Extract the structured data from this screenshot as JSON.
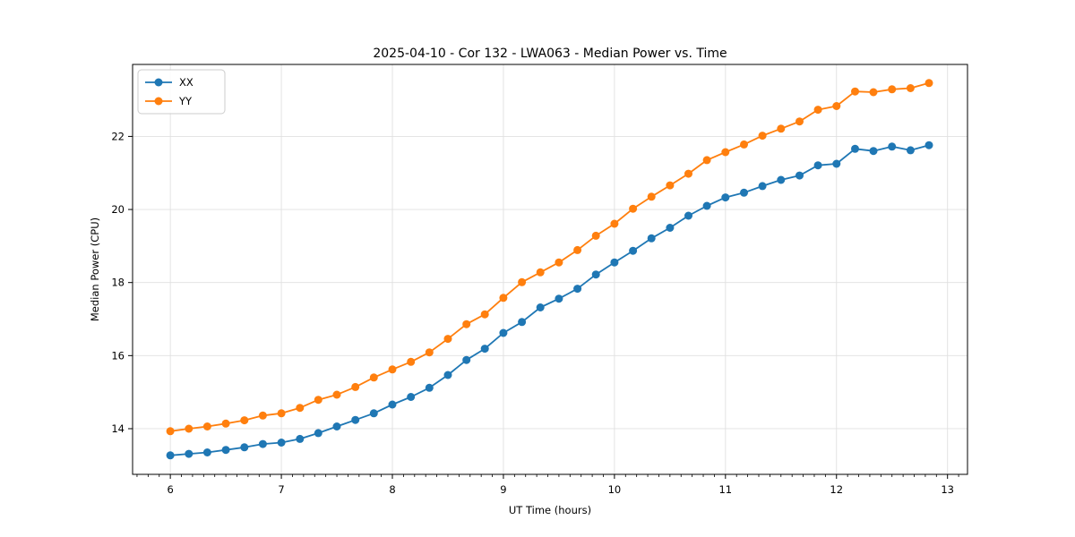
{
  "chart_data": {
    "type": "line",
    "title": "2025-04-10 - Cor 132 - LWA063 - Median Power vs. Time",
    "xlabel": "UT Time (hours)",
    "ylabel": "Median Power (CPU)",
    "xlim": [
      5.66,
      13.18
    ],
    "ylim": [
      12.75,
      23.97
    ],
    "xticks": [
      6,
      7,
      8,
      9,
      10,
      11,
      12,
      13
    ],
    "yticks": [
      14,
      16,
      18,
      20,
      22
    ],
    "minor_xtick_step": 0.1,
    "grid": true,
    "grid_color": "#e0e0e0",
    "legend_position": "upper-left",
    "x": [
      6.0,
      6.167,
      6.333,
      6.5,
      6.667,
      6.833,
      7.0,
      7.167,
      7.333,
      7.5,
      7.667,
      7.833,
      8.0,
      8.167,
      8.333,
      8.5,
      8.667,
      8.833,
      9.0,
      9.167,
      9.333,
      9.5,
      9.667,
      9.833,
      10.0,
      10.167,
      10.333,
      10.5,
      10.667,
      10.833,
      11.0,
      11.167,
      11.333,
      11.5,
      11.667,
      11.833,
      12.0,
      12.167,
      12.333,
      12.5,
      12.667,
      12.833
    ],
    "series": [
      {
        "name": "XX",
        "color": "#1f77b4",
        "values": [
          13.27,
          13.31,
          13.35,
          13.42,
          13.49,
          13.58,
          13.62,
          13.72,
          13.88,
          14.06,
          14.24,
          14.42,
          14.66,
          14.87,
          15.12,
          15.47,
          15.88,
          16.19,
          16.62,
          16.92,
          17.32,
          17.56,
          17.83,
          18.22,
          18.55,
          18.87,
          19.21,
          19.5,
          19.83,
          20.1,
          20.33,
          20.46,
          20.64,
          20.81,
          20.93,
          21.21,
          21.25,
          21.66,
          21.6,
          21.72,
          21.62,
          21.76
        ]
      },
      {
        "name": "YY",
        "color": "#ff7f0e",
        "values": [
          13.93,
          14.0,
          14.06,
          14.14,
          14.23,
          14.36,
          14.42,
          14.57,
          14.79,
          14.93,
          15.14,
          15.4,
          15.62,
          15.83,
          16.09,
          16.46,
          16.86,
          17.13,
          17.58,
          18.01,
          18.28,
          18.55,
          18.89,
          19.28,
          19.61,
          20.02,
          20.35,
          20.66,
          20.98,
          21.35,
          21.57,
          21.78,
          22.02,
          22.21,
          22.41,
          22.73,
          22.83,
          23.23,
          23.21,
          23.29,
          23.32,
          23.46
        ]
      }
    ]
  }
}
